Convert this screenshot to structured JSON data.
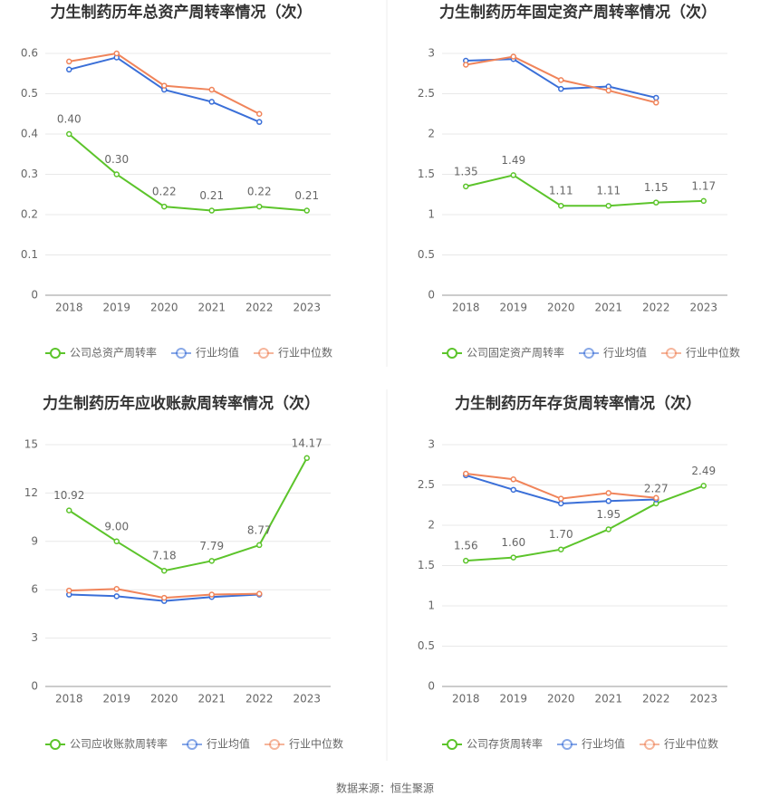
{
  "chart_data": [
    {
      "type": "line",
      "title": "力生制药历年总资产周转率情况（次）",
      "categories": [
        "2018",
        "2019",
        "2020",
        "2021",
        "2022",
        "2023"
      ],
      "ylim": [
        0,
        0.6
      ],
      "yticks": [
        0,
        0.1,
        0.2,
        0.3,
        0.4,
        0.5,
        0.6
      ],
      "grid": true,
      "series": [
        {
          "name": "公司总资产周转率",
          "color": "#5cc42b",
          "values": [
            0.4,
            0.3,
            0.22,
            0.21,
            0.22,
            0.21
          ],
          "value_labels": [
            "0.40",
            "0.30",
            "0.22",
            "0.21",
            "0.22",
            "0.21"
          ]
        },
        {
          "name": "行业均值",
          "color": "#3a6fd8",
          "values": [
            0.56,
            0.59,
            0.51,
            0.48,
            0.43,
            null
          ]
        },
        {
          "name": "行业中位数",
          "color": "#f0845a",
          "values": [
            0.58,
            0.6,
            0.52,
            0.51,
            0.45,
            null
          ]
        }
      ]
    },
    {
      "type": "line",
      "title": "力生制药历年固定资产周转率情况（次）",
      "categories": [
        "2018",
        "2019",
        "2020",
        "2021",
        "2022",
        "2023"
      ],
      "ylim": [
        0,
        3
      ],
      "yticks": [
        0,
        0.5,
        1,
        1.5,
        2,
        2.5,
        3
      ],
      "grid": true,
      "series": [
        {
          "name": "公司固定资产周转率",
          "color": "#5cc42b",
          "values": [
            1.35,
            1.49,
            1.11,
            1.11,
            1.15,
            1.17
          ]
        },
        {
          "name": "行业均值",
          "color": "#3a6fd8",
          "values": [
            2.91,
            2.93,
            2.56,
            2.59,
            2.45,
            null
          ]
        },
        {
          "name": "行业中位数",
          "color": "#f0845a",
          "values": [
            2.86,
            2.96,
            2.67,
            2.54,
            2.39,
            null
          ]
        }
      ]
    },
    {
      "type": "line",
      "title": "力生制药历年应收账款周转率情况（次）",
      "categories": [
        "2018",
        "2019",
        "2020",
        "2021",
        "2022",
        "2023"
      ],
      "ylim": [
        0,
        15
      ],
      "yticks": [
        0,
        3,
        6,
        9,
        12,
        15
      ],
      "grid": true,
      "series": [
        {
          "name": "公司应收账款周转率",
          "color": "#5cc42b",
          "values": [
            10.92,
            9,
            7.18,
            7.79,
            8.77,
            14.17
          ],
          "value_labels": [
            "10.92",
            "9.00",
            "7.18",
            "7.79",
            "8.77",
            "14.17"
          ]
        },
        {
          "name": "行业均值",
          "color": "#3a6fd8",
          "values": [
            5.7,
            5.6,
            5.3,
            5.55,
            5.7,
            null
          ]
        },
        {
          "name": "行业中位数",
          "color": "#f0845a",
          "values": [
            5.95,
            6.05,
            5.5,
            5.7,
            5.75,
            null
          ]
        }
      ]
    },
    {
      "type": "line",
      "title": "力生制药历年存货周转率情况（次）",
      "categories": [
        "2018",
        "2019",
        "2020",
        "2021",
        "2022",
        "2023"
      ],
      "ylim": [
        0,
        3
      ],
      "yticks": [
        0,
        0.5,
        1,
        1.5,
        2,
        2.5,
        3
      ],
      "grid": true,
      "series": [
        {
          "name": "公司存货周转率",
          "color": "#5cc42b",
          "values": [
            1.56,
            1.6,
            1.7,
            1.95,
            2.27,
            2.49
          ],
          "value_labels": [
            "1.56",
            "1.60",
            "1.70",
            "1.95",
            "2.27",
            "2.49"
          ]
        },
        {
          "name": "行业均值",
          "color": "#3a6fd8",
          "values": [
            2.62,
            2.44,
            2.27,
            2.3,
            2.32,
            null
          ]
        },
        {
          "name": "行业中位数",
          "color": "#f0845a",
          "values": [
            2.64,
            2.57,
            2.33,
            2.4,
            2.34,
            null
          ]
        }
      ]
    }
  ],
  "source": "数据来源：恒生聚源"
}
